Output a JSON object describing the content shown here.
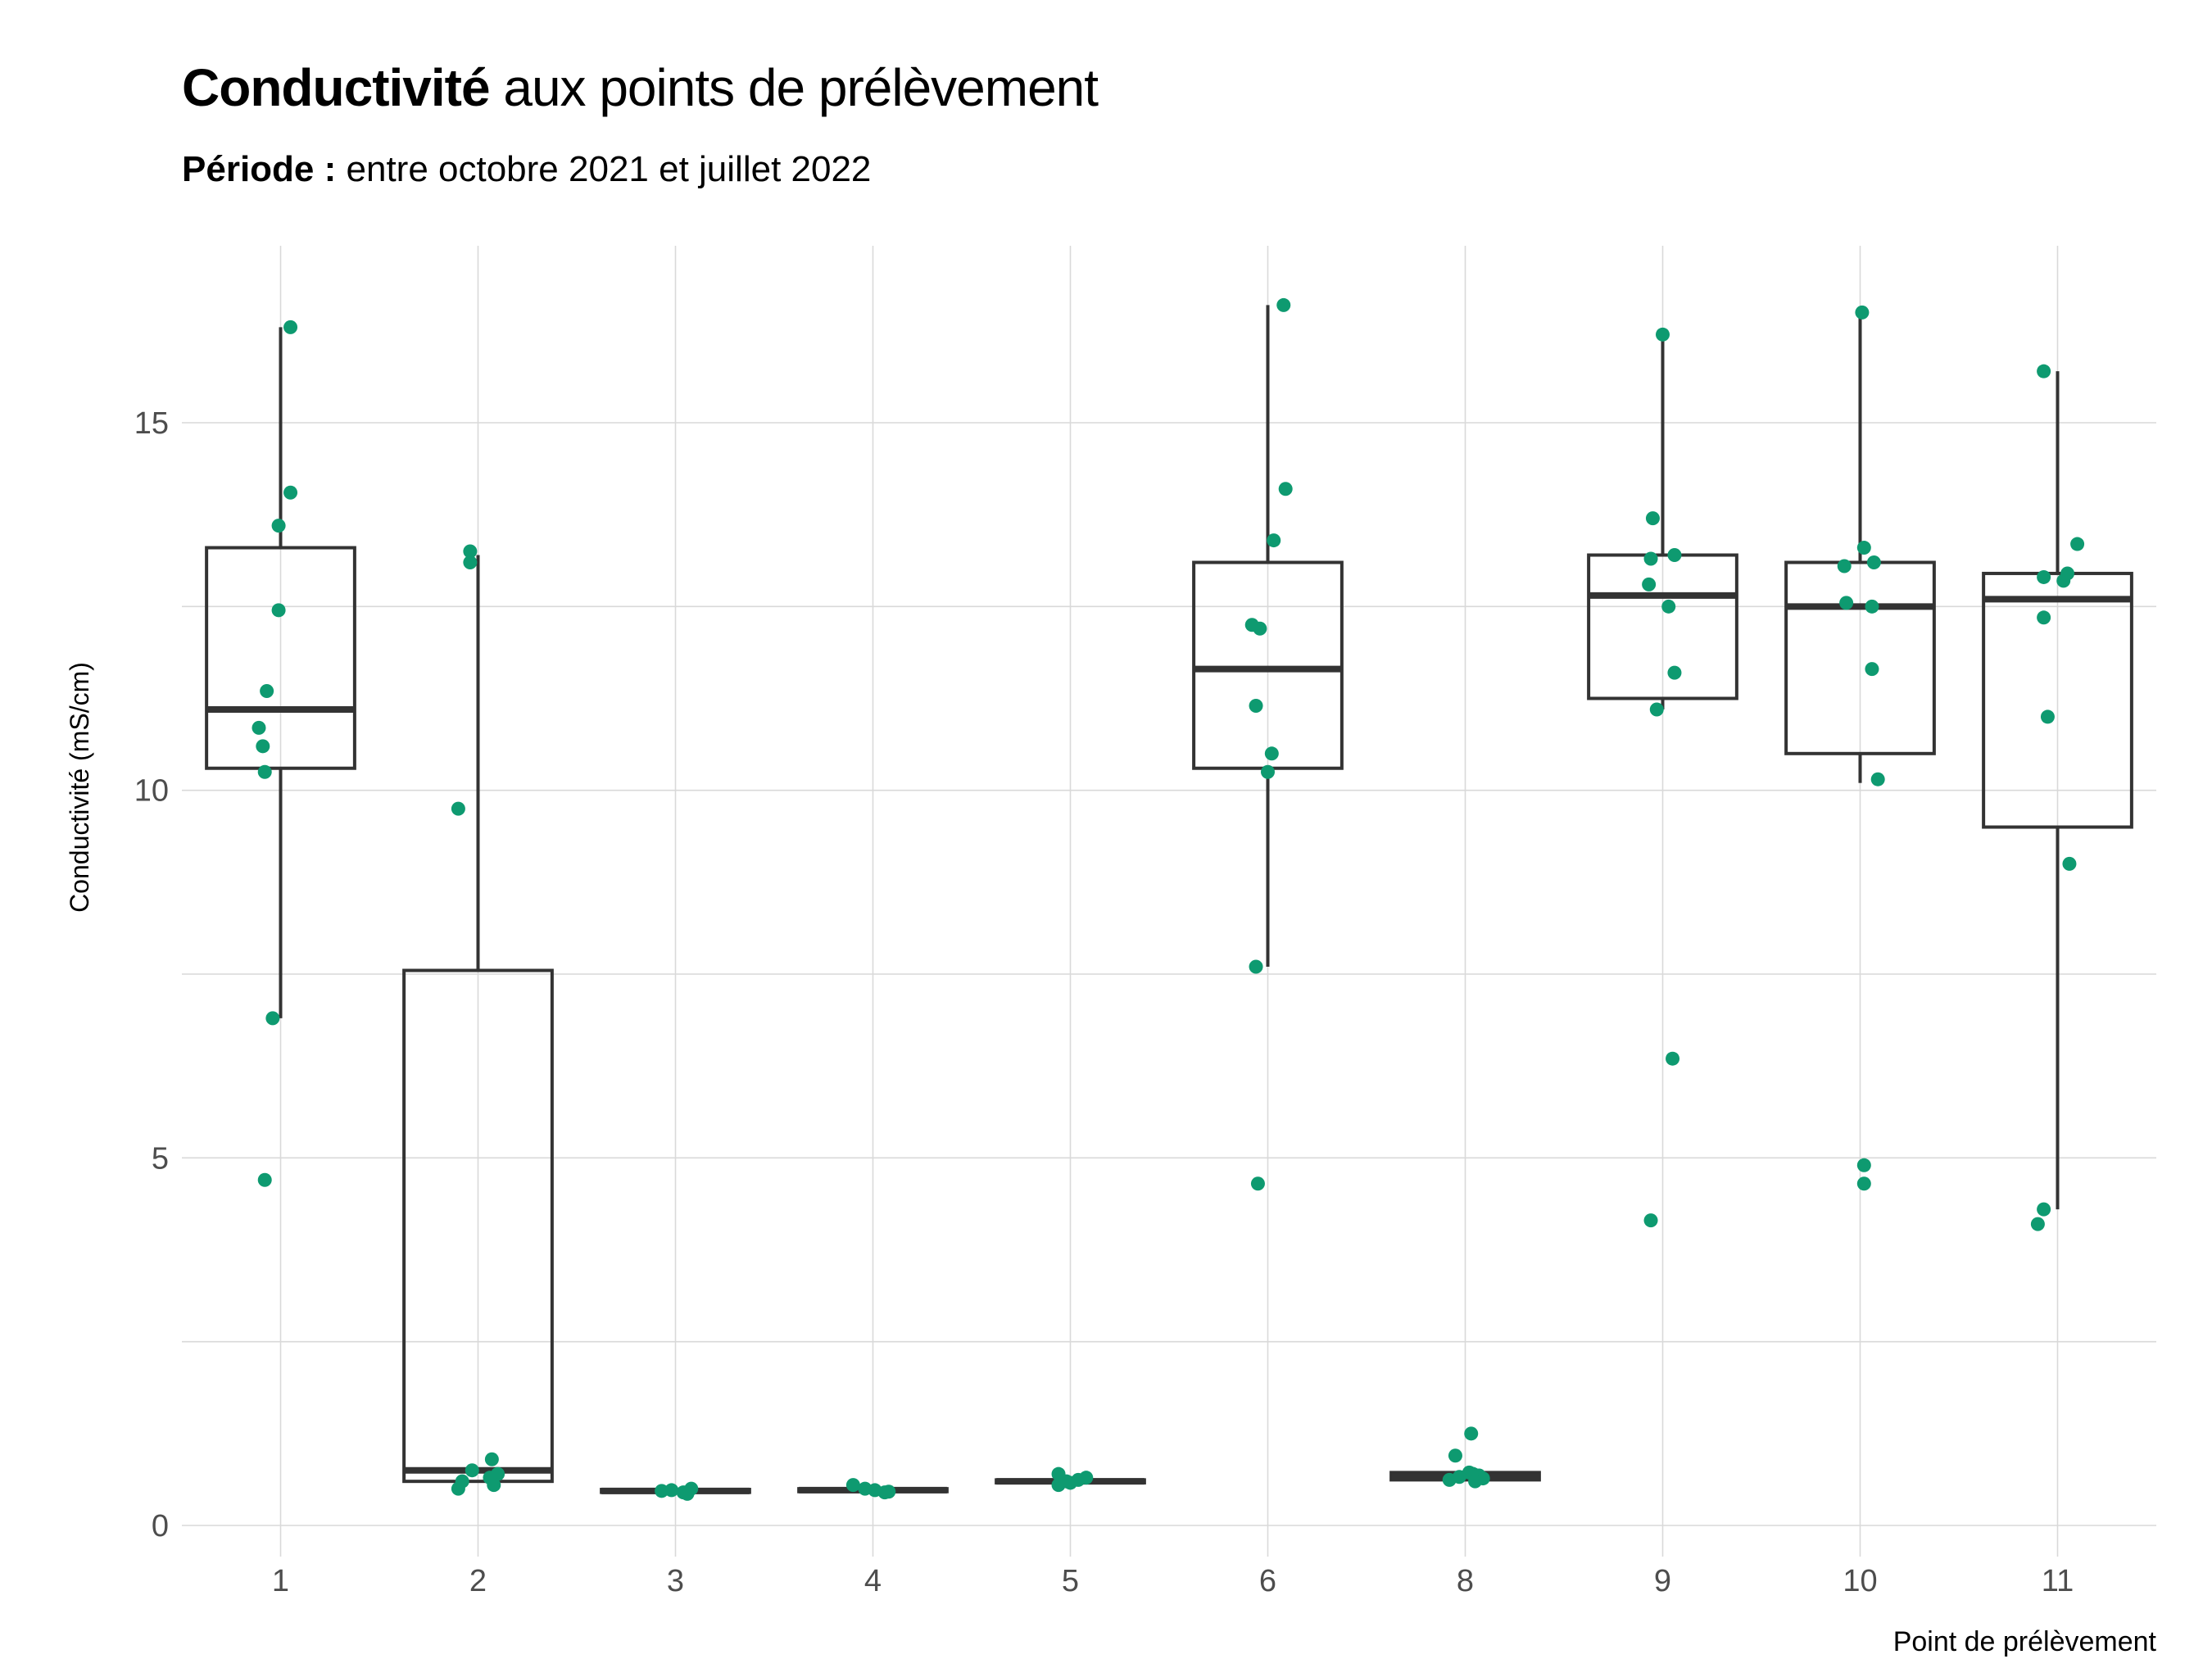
{
  "title": {
    "bold": "Conductivité",
    "rest": " aux points de prélèvement"
  },
  "subtitle": {
    "bold": "Période :",
    "rest": " entre octobre 2021 et juillet 2022"
  },
  "colors": {
    "point": "#0e9a70",
    "box": "#333333",
    "grid": "#d9d9d9"
  },
  "chart_data": {
    "type": "box",
    "xlabel": "Point de prélèvement",
    "ylabel": "Conductivité (mS/cm)",
    "ylim": [
      -0.5,
      17.4
    ],
    "yticks": [
      0,
      5,
      10,
      15
    ],
    "grid": true,
    "categories": [
      "1",
      "2",
      "3",
      "4",
      "5",
      "6",
      "8",
      "9",
      "10",
      "11"
    ],
    "boxes": [
      {
        "q1": 10.3,
        "median": 11.1,
        "q3": 13.3,
        "whisker_low": 6.9,
        "whisker_high": 16.3
      },
      {
        "q1": 0.6,
        "median": 0.75,
        "q3": 7.55,
        "whisker_low": 0.6,
        "whisker_high": 13.2
      },
      {
        "q1": 0.45,
        "median": 0.47,
        "q3": 0.49,
        "whisker_low": 0.45,
        "whisker_high": 0.49
      },
      {
        "q1": 0.46,
        "median": 0.48,
        "q3": 0.5,
        "whisker_low": 0.46,
        "whisker_high": 0.5
      },
      {
        "q1": 0.58,
        "median": 0.6,
        "q3": 0.62,
        "whisker_low": 0.58,
        "whisker_high": 0.62
      },
      {
        "q1": 10.3,
        "median": 11.65,
        "q3": 13.1,
        "whisker_low": 7.6,
        "whisker_high": 16.6
      },
      {
        "q1": 0.62,
        "median": 0.66,
        "q3": 0.72,
        "whisker_low": 0.62,
        "whisker_high": 0.72
      },
      {
        "q1": 11.25,
        "median": 12.65,
        "q3": 13.2,
        "whisker_low": 11.1,
        "whisker_high": 16.2
      },
      {
        "q1": 10.5,
        "median": 12.5,
        "q3": 13.1,
        "whisker_low": 10.1,
        "whisker_high": 16.5
      },
      {
        "q1": 9.5,
        "median": 12.6,
        "q3": 12.95,
        "whisker_low": 4.3,
        "whisker_high": 15.7
      }
    ],
    "points": [
      [
        16.3,
        14.05,
        13.6,
        12.45,
        11.35,
        10.85,
        10.6,
        10.25,
        6.9,
        4.7
      ],
      [
        13.25,
        13.1,
        9.75,
        0.9,
        0.75,
        0.7,
        0.65,
        0.6,
        0.55,
        0.5
      ],
      [
        0.5,
        0.48,
        0.47,
        0.45,
        0.43
      ],
      [
        0.55,
        0.5,
        0.48,
        0.46,
        0.45
      ],
      [
        0.7,
        0.65,
        0.62,
        0.6,
        0.58,
        0.55
      ],
      [
        16.6,
        14.1,
        13.4,
        12.25,
        12.2,
        11.15,
        10.5,
        10.25,
        7.6,
        4.65
      ],
      [
        1.25,
        0.95,
        0.72,
        0.7,
        0.68,
        0.66,
        0.64,
        0.62,
        0.6
      ],
      [
        16.2,
        13.7,
        13.2,
        13.15,
        12.8,
        12.5,
        11.6,
        11.1,
        6.35,
        4.15
      ],
      [
        16.5,
        13.3,
        13.1,
        13.05,
        12.55,
        12.5,
        11.65,
        10.15,
        4.9,
        4.65
      ],
      [
        15.7,
        13.35,
        12.95,
        12.9,
        12.85,
        12.35,
        11.0,
        9.0,
        4.3,
        4.1
      ]
    ],
    "jitter": [
      [
        0.05,
        0.05,
        -0.01,
        -0.01,
        -0.07,
        -0.11,
        -0.09,
        -0.08,
        -0.04,
        -0.08
      ],
      [
        -0.04,
        -0.04,
        -0.1,
        0.07,
        -0.03,
        0.1,
        0.06,
        -0.08,
        0.08,
        -0.1
      ],
      [
        0.08,
        -0.02,
        -0.07,
        0.04,
        0.06
      ],
      [
        -0.1,
        -0.04,
        0.01,
        0.08,
        0.06
      ],
      [
        -0.06,
        0.08,
        0.04,
        -0.02,
        0.0,
        -0.06
      ],
      [
        0.08,
        0.09,
        0.03,
        -0.08,
        -0.04,
        -0.06,
        0.02,
        0.0,
        -0.06,
        -0.05
      ],
      [
        0.03,
        -0.05,
        0.02,
        0.04,
        0.07,
        -0.03,
        0.09,
        -0.08,
        0.05
      ],
      [
        0.0,
        -0.05,
        0.06,
        -0.06,
        -0.07,
        0.03,
        0.06,
        -0.03,
        0.05,
        -0.06
      ],
      [
        0.01,
        0.02,
        0.07,
        -0.08,
        -0.07,
        0.06,
        0.06,
        0.09,
        0.02,
        0.02
      ],
      [
        -0.07,
        0.1,
        0.05,
        -0.07,
        0.03,
        -0.07,
        -0.05,
        0.06,
        -0.07,
        -0.1
      ]
    ]
  }
}
